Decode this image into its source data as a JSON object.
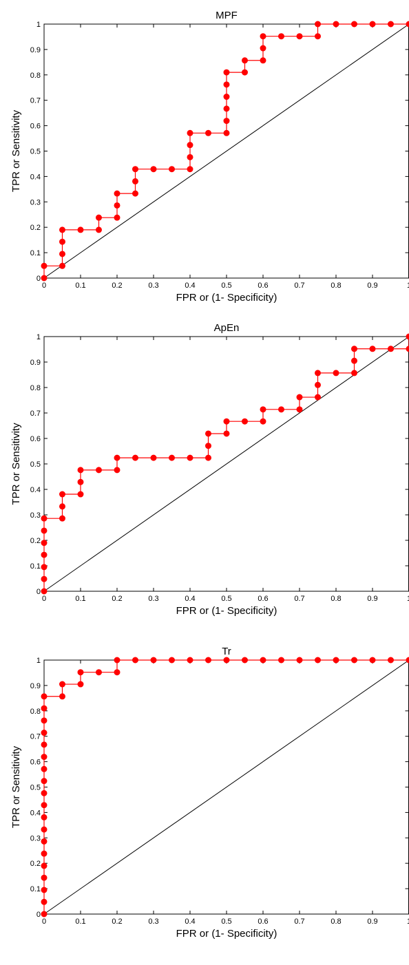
{
  "chart_data": [
    {
      "type": "line",
      "title": "MPF",
      "xlabel": "FPR or (1- Specificity)",
      "ylabel": "TPR or Sensitivity",
      "xlim": [
        0,
        1
      ],
      "ylim": [
        0,
        1
      ],
      "x_ticks": [
        "0",
        "0.1",
        "0.2",
        "0.3",
        "0.4",
        "0.5",
        "0.6",
        "0.7",
        "0.8",
        "0.9",
        "1"
      ],
      "y_ticks": [
        "0",
        "0.1",
        "0.2",
        "0.3",
        "0.4",
        "0.5",
        "0.6",
        "0.7",
        "0.8",
        "0.9",
        "1"
      ],
      "grid": false,
      "diagonal_color": "#000000",
      "series_color": "#ff0000",
      "series": [
        {
          "x": [
            0,
            0,
            0.05,
            0.05,
            0.05,
            0.05,
            0.1,
            0.15,
            0.15,
            0.2,
            0.2,
            0.2,
            0.25,
            0.25,
            0.25,
            0.3,
            0.35,
            0.4,
            0.4,
            0.4,
            0.4,
            0.45,
            0.5,
            0.5,
            0.5,
            0.5,
            0.5,
            0.5,
            0.55,
            0.55,
            0.6,
            0.6,
            0.6,
            0.65,
            0.7,
            0.75,
            0.75,
            0.8,
            0.85,
            0.9,
            0.95,
            1
          ],
          "y": [
            0,
            0.048,
            0.048,
            0.095,
            0.143,
            0.19,
            0.19,
            0.19,
            0.238,
            0.238,
            0.286,
            0.333,
            0.333,
            0.381,
            0.429,
            0.429,
            0.429,
            0.429,
            0.476,
            0.524,
            0.571,
            0.571,
            0.571,
            0.619,
            0.667,
            0.714,
            0.762,
            0.81,
            0.81,
            0.857,
            0.857,
            0.905,
            0.952,
            0.952,
            0.952,
            0.952,
            1,
            1,
            1,
            1,
            1,
            1
          ]
        }
      ]
    },
    {
      "type": "line",
      "title": "ApEn",
      "xlabel": "FPR or (1- Specificity)",
      "ylabel": "TPR or Sensitivity",
      "xlim": [
        0,
        1
      ],
      "ylim": [
        0,
        1
      ],
      "x_ticks": [
        "0",
        "0.1",
        "0.2",
        "0.3",
        "0.4",
        "0.5",
        "0.6",
        "0.7",
        "0.8",
        "0.9",
        "1"
      ],
      "y_ticks": [
        "0",
        "0.1",
        "0.2",
        "0.3",
        "0.4",
        "0.5",
        "0.6",
        "0.7",
        "0.8",
        "0.9",
        "1"
      ],
      "grid": false,
      "diagonal_color": "#000000",
      "series_color": "#ff0000",
      "series": [
        {
          "x": [
            0,
            0,
            0,
            0,
            0,
            0,
            0,
            0.05,
            0.05,
            0.05,
            0.1,
            0.1,
            0.1,
            0.15,
            0.2,
            0.2,
            0.25,
            0.3,
            0.35,
            0.4,
            0.45,
            0.45,
            0.45,
            0.5,
            0.5,
            0.55,
            0.6,
            0.6,
            0.65,
            0.7,
            0.7,
            0.75,
            0.75,
            0.75,
            0.8,
            0.85,
            0.85,
            0.85,
            0.9,
            0.95,
            1,
            1
          ],
          "y": [
            0,
            0.048,
            0.095,
            0.143,
            0.19,
            0.238,
            0.286,
            0.286,
            0.333,
            0.381,
            0.381,
            0.429,
            0.476,
            0.476,
            0.476,
            0.524,
            0.524,
            0.524,
            0.524,
            0.524,
            0.524,
            0.571,
            0.619,
            0.619,
            0.667,
            0.667,
            0.667,
            0.714,
            0.714,
            0.714,
            0.762,
            0.762,
            0.81,
            0.857,
            0.857,
            0.857,
            0.905,
            0.952,
            0.952,
            0.952,
            0.952,
            1
          ]
        }
      ]
    },
    {
      "type": "line",
      "title": "Tr",
      "xlabel": "FPR or (1- Specificity)",
      "ylabel": "TPR or Sensitivity",
      "xlim": [
        0,
        1
      ],
      "ylim": [
        0,
        1
      ],
      "x_ticks": [
        "0",
        "0.1",
        "0.2",
        "0.3",
        "0.4",
        "0.5",
        "0.6",
        "0.7",
        "0.8",
        "0.9",
        "1"
      ],
      "y_ticks": [
        "0",
        "0.1",
        "0.2",
        "0.3",
        "0.4",
        "0.5",
        "0.6",
        "0.7",
        "0.8",
        "0.9",
        "1"
      ],
      "grid": false,
      "diagonal_color": "#000000",
      "series_color": "#ff0000",
      "series": [
        {
          "x": [
            0,
            0,
            0,
            0,
            0,
            0,
            0,
            0,
            0,
            0,
            0,
            0,
            0,
            0,
            0,
            0,
            0,
            0,
            0,
            0.05,
            0.05,
            0.1,
            0.1,
            0.15,
            0.2,
            0.2,
            0.25,
            0.3,
            0.35,
            0.4,
            0.45,
            0.5,
            0.55,
            0.6,
            0.65,
            0.7,
            0.75,
            0.8,
            0.85,
            0.9,
            0.95,
            1
          ],
          "y": [
            0,
            0.048,
            0.095,
            0.143,
            0.19,
            0.238,
            0.286,
            0.333,
            0.381,
            0.429,
            0.476,
            0.524,
            0.571,
            0.619,
            0.667,
            0.714,
            0.762,
            0.81,
            0.857,
            0.857,
            0.905,
            0.905,
            0.952,
            0.952,
            0.952,
            1,
            1,
            1,
            1,
            1,
            1,
            1,
            1,
            1,
            1,
            1,
            1,
            1,
            1,
            1,
            1,
            1
          ]
        }
      ]
    }
  ]
}
